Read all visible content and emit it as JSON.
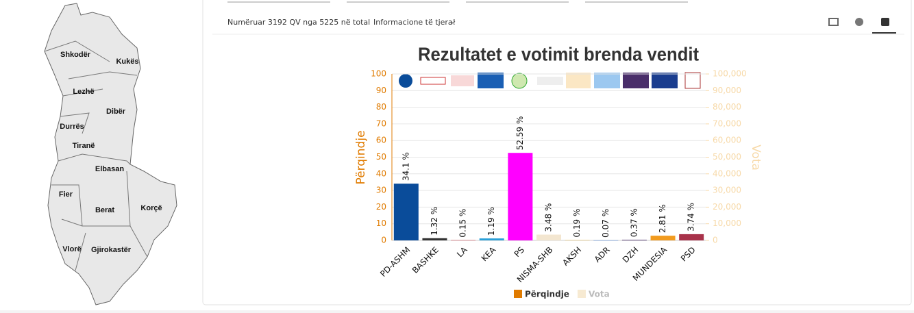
{
  "map": {
    "regions": [
      "Shkodër",
      "Kukës",
      "Lezhë",
      "Dibër",
      "Durrës",
      "Tiranë",
      "Elbasan",
      "Fier",
      "Berat",
      "Korçë",
      "Vlorë",
      "Gjirokastër"
    ]
  },
  "toolbar": {
    "counted": "Numëruar 3192 QV nga 5225 në total",
    "more_info": "Informacione të tjera!"
  },
  "chart_data": {
    "type": "bar",
    "title": "Rezultatet e votimit brenda vendit",
    "y_label": "Përqindje",
    "y2_label": "Vota",
    "categories": [
      "PD-ASHM",
      "BASHKE",
      "LA",
      "KEA",
      "PS",
      "NISMA-SHB",
      "AKSH",
      "ADR",
      "DZH",
      "MUNDESIA",
      "PSD"
    ],
    "series": [
      {
        "name": "Përqindje",
        "color": "#e07b00",
        "values": [
          34.1,
          1.32,
          0.15,
          1.19,
          52.59,
          3.48,
          0.19,
          0.07,
          0.37,
          2.81,
          3.74
        ],
        "value_labels": [
          "34.1 %",
          "1.32 %",
          "0.15 %",
          "1.19 %",
          "52.59 %",
          "3.48 %",
          "0.19 %",
          "0.07 %",
          "0.37 %",
          "2.81 %",
          "3.74 %"
        ],
        "colors": [
          "#0a4c9a",
          "#333333",
          "#c8323c",
          "#2aa0d8",
          "#ff00ff",
          "#f3e6d0",
          "#e8b84a",
          "#4a7fd0",
          "#4a2e6a",
          "#f29b1e",
          "#a8324a"
        ]
      },
      {
        "name": "Vota",
        "color": "#f7ead2",
        "axis": "y2",
        "visible": false,
        "values": [
          null,
          null,
          null,
          null,
          null,
          null,
          null,
          null,
          null,
          null,
          null
        ]
      }
    ],
    "ylim": [
      0,
      100
    ],
    "yticks": [
      0,
      10,
      20,
      30,
      40,
      50,
      60,
      70,
      80,
      90,
      100
    ],
    "y2lim": [
      0,
      100000
    ],
    "y2ticks": [
      0,
      {
        "value": 10000,
        "label": "10,000"
      },
      {
        "value": 20000,
        "label": "20,000"
      },
      {
        "value": 30000,
        "label": "30,000"
      },
      {
        "value": 40000,
        "label": "40,000"
      },
      {
        "value": 50000,
        "label": "50,000"
      },
      {
        "value": 60000,
        "label": "60,000"
      },
      {
        "value": 70000,
        "label": "70,000"
      },
      {
        "value": 80000,
        "label": "80,000"
      },
      {
        "value": 90000,
        "label": "90,000"
      },
      {
        "value": 100000,
        "label": "100,000"
      }
    ],
    "grid": true,
    "legend": "bottom"
  }
}
